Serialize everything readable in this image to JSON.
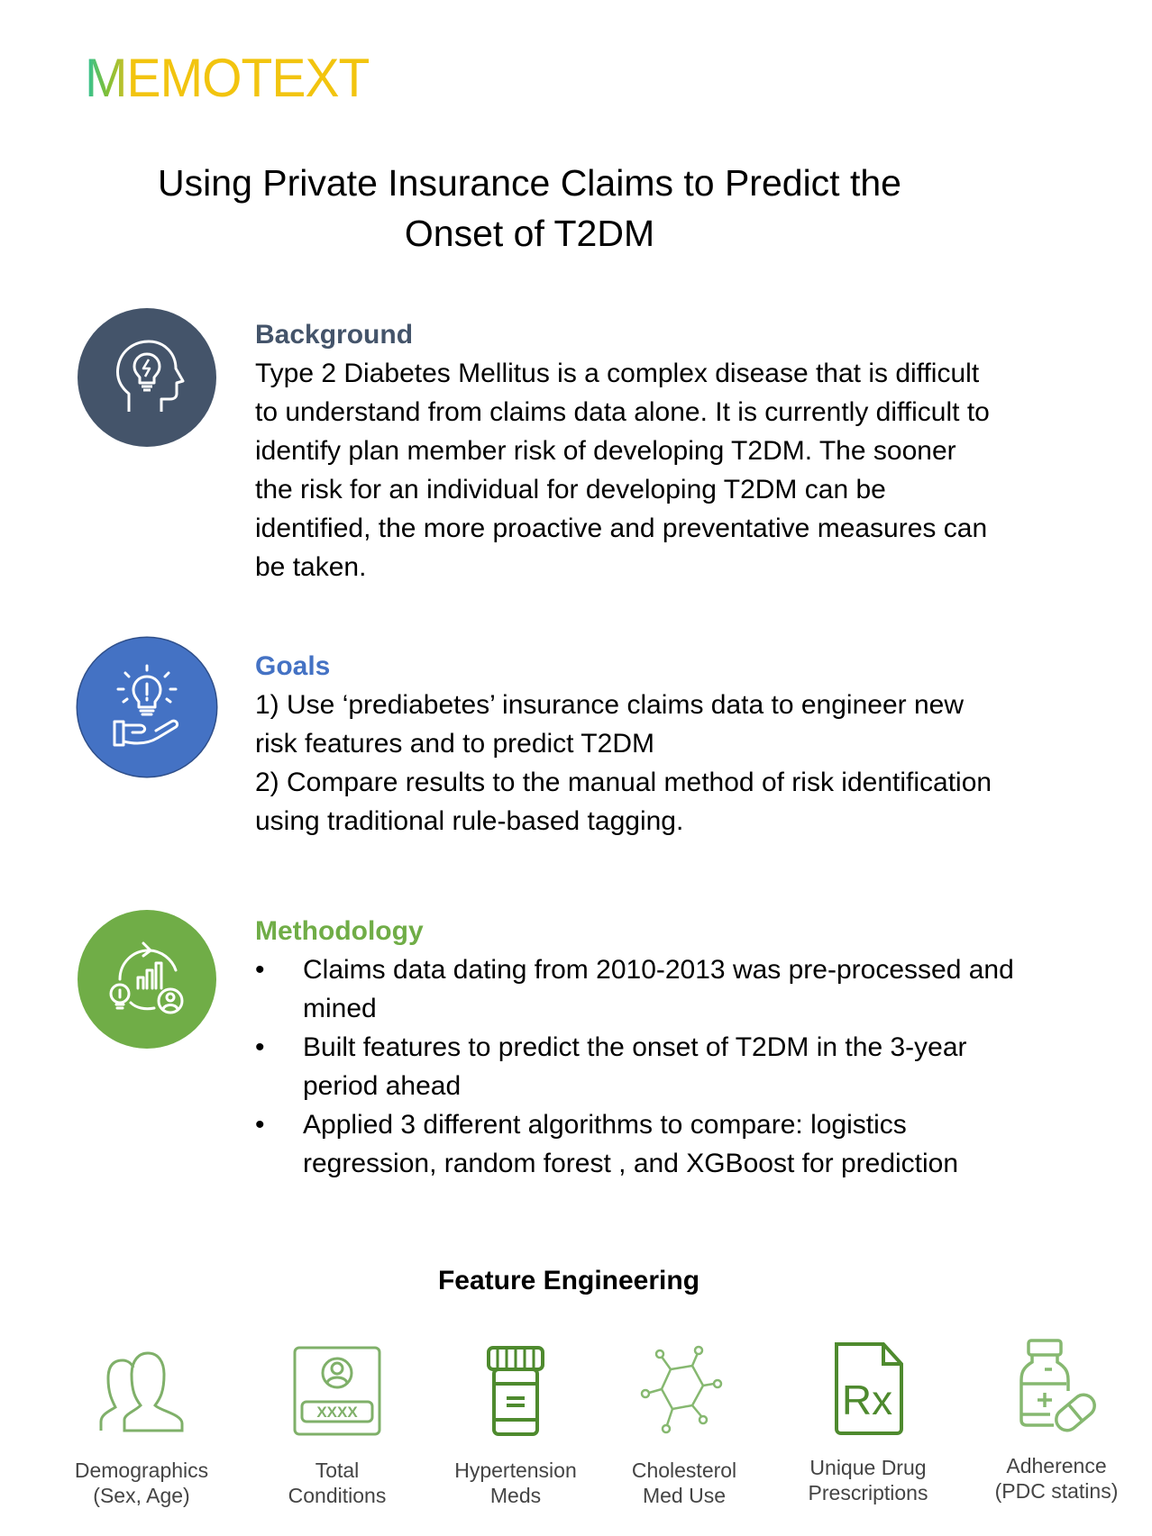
{
  "logo": {
    "text": "MEMOTEXT",
    "colors": {
      "m": "#2cc3a0",
      "rest": "#f2c40f"
    }
  },
  "title": {
    "line1": "Using Private Insurance Claims to Predict the",
    "line2": "Onset of T2DM"
  },
  "background": {
    "heading": "Background",
    "color": "#44546a",
    "icon": "head-lightbulb-icon",
    "lines": [
      "Type 2 Diabetes Mellitus is a complex disease that is difficult",
      "to understand from claims data alone. It is currently difficult to",
      "identify plan member risk of developing T2DM. The sooner",
      "the risk for an individual for developing T2DM can be",
      "identified, the more proactive and preventative measures can",
      "be taken."
    ]
  },
  "goals": {
    "heading": "Goals",
    "color": "#4472c4",
    "icon": "hand-lightbulb-icon",
    "lines": [
      "1) Use  ‘prediabetes’ insurance claims data to engineer new",
      "risk features and to predict T2DM",
      "2) Compare results to the manual method of risk identification",
      "using traditional rule-based tagging."
    ]
  },
  "methodology": {
    "heading": "Methodology",
    "color": "#70ad47",
    "icon": "analytics-cycle-icon",
    "bullet": "•",
    "items": [
      {
        "line1": "Claims data dating from 2010-2013 was pre-processed and",
        "line2": "mined"
      },
      {
        "line1": "Built features to predict the onset of T2DM in the 3-year",
        "line2": "period ahead"
      },
      {
        "line1": "Applied 3 different algorithms to compare: logistics",
        "line2": "regression, random forest , and XGBoost for prediction"
      }
    ]
  },
  "features": {
    "title": "Feature Engineering",
    "items": [
      {
        "icon": "people-icon",
        "line1": "Demographics",
        "line2": "(Sex, Age)"
      },
      {
        "icon": "id-card-icon",
        "line1": "Total",
        "line2": "Conditions",
        "badge": "XXXX"
      },
      {
        "icon": "pill-bottle-icon",
        "line1": "Hypertension",
        "line2": "Meds"
      },
      {
        "icon": "molecule-icon",
        "line1": "Cholesterol",
        "line2": "Med Use"
      },
      {
        "icon": "prescription-icon",
        "line1": "Unique Drug",
        "line2": "Prescriptions",
        "badge": "Rx"
      },
      {
        "icon": "medicine-bottle-pill-icon",
        "line1": "Adherence",
        "line2": "(PDC statins)"
      }
    ]
  }
}
